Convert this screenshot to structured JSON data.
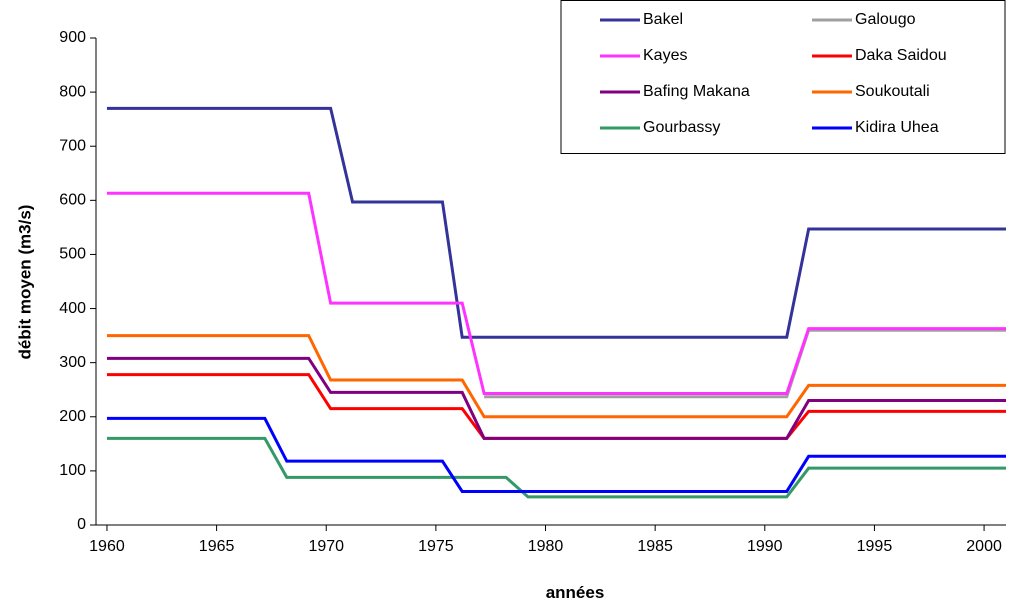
{
  "chart_data": {
    "type": "line",
    "x_label": "années",
    "y_label": "débit moyen (m3/s)",
    "xlim": [
      1959.5,
      2001
    ],
    "xticks": [
      1960,
      1965,
      1970,
      1975,
      1980,
      1985,
      1990,
      1995,
      2000
    ],
    "ylim": [
      0,
      900
    ],
    "yticks": [
      0,
      100,
      200,
      300,
      400,
      500,
      600,
      700,
      800,
      900
    ],
    "legend": "top-right",
    "series": [
      {
        "name": "Bakel",
        "color": "#333399",
        "x": [
          1960,
          1970.2,
          1971.2,
          1975.3,
          1976.2,
          1991,
          1992,
          2001
        ],
        "values": [
          770,
          770,
          597,
          597,
          347,
          347,
          547,
          547
        ]
      },
      {
        "name": "Galougo",
        "color": "#a0a0a0",
        "x": [
          1977.2,
          1991,
          1992,
          2001
        ],
        "values": [
          237,
          237,
          360,
          360
        ]
      },
      {
        "name": "Kayes",
        "color": "#ff33ff",
        "x": [
          1960,
          1969.2,
          1970.2,
          1976.2,
          1977.2,
          1991,
          1992,
          2001
        ],
        "values": [
          613,
          613,
          410,
          410,
          243,
          243,
          363,
          363
        ]
      },
      {
        "name": "Daka Saidou",
        "color": "#ff0000",
        "x": [
          1960,
          1969.2,
          1970.2,
          1976.2,
          1977.2,
          1991,
          1992,
          2001
        ],
        "values": [
          278,
          278,
          215,
          215,
          160,
          160,
          210,
          210
        ]
      },
      {
        "name": "Bafing Makana",
        "color": "#800080",
        "x": [
          1960,
          1969.2,
          1970.2,
          1976.2,
          1977.2,
          1991,
          1992,
          2001
        ],
        "values": [
          308,
          308,
          245,
          245,
          160,
          160,
          230,
          230
        ]
      },
      {
        "name": "Soukoutali",
        "color": "#ff6600",
        "x": [
          1960,
          1969.2,
          1970.2,
          1976.2,
          1977.2,
          1991,
          1992,
          2001
        ],
        "values": [
          350,
          350,
          268,
          268,
          200,
          200,
          258,
          258
        ]
      },
      {
        "name": "Gourbassy",
        "color": "#339966",
        "x": [
          1960,
          1967.2,
          1968.2,
          1978.2,
          1979.2,
          1991,
          1992,
          2001
        ],
        "values": [
          160,
          160,
          88,
          88,
          52,
          52,
          105,
          105
        ]
      },
      {
        "name": "Kidira Uhea",
        "color": "#0000ff",
        "x": [
          1960,
          1967.2,
          1968.2,
          1975.3,
          1976.2,
          1991,
          1992,
          2001
        ],
        "values": [
          197,
          197,
          118,
          118,
          62,
          62,
          127,
          127
        ]
      }
    ]
  }
}
